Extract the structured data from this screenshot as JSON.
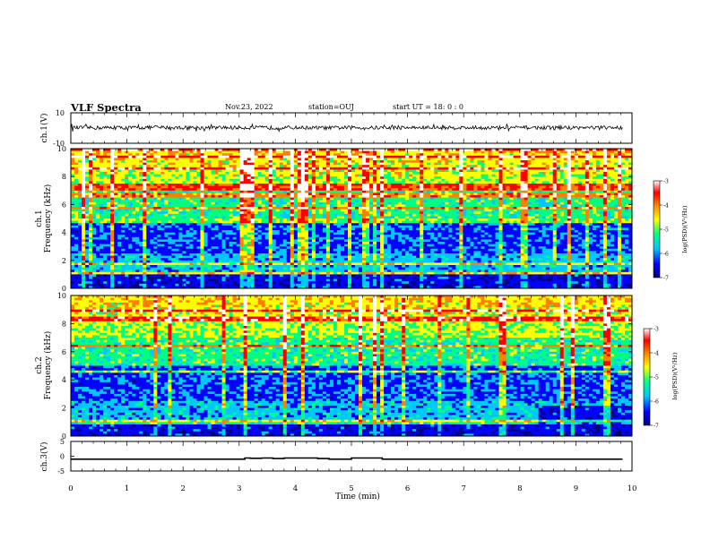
{
  "header": {
    "title": "VLF Spectra",
    "date": "Nov.23, 2022",
    "station": "station=OUJ",
    "start_ut": "start  UT =   18: 0  : 0"
  },
  "colors": {
    "spectrogram_colormap": [
      "#000080",
      "#0000ff",
      "#00c8ff",
      "#00ff80",
      "#ffff00",
      "#ff8000",
      "#ff0000",
      "#ffffff"
    ],
    "trace": "#000000"
  },
  "chart_data": [
    {
      "type": "line",
      "name": "ch1-waveform",
      "ylabel": "ch.1(V)",
      "ylim": [
        -10,
        10
      ],
      "yticks": [
        "10",
        "-10"
      ],
      "xlim": [
        0,
        10
      ],
      "x": [
        0,
        0.5,
        1,
        1.5,
        2,
        2.5,
        3,
        3.5,
        4,
        4.5,
        5,
        5.5,
        6,
        6.5,
        7,
        7.5,
        8,
        8.5,
        9,
        9.5,
        9.83
      ],
      "y": [
        0.3,
        0.2,
        0.2,
        0.4,
        0.3,
        0.2,
        0.3,
        0.2,
        0.3,
        0.1,
        0.3,
        0.2,
        0.3,
        0.2,
        0.3,
        0.2,
        0.3,
        0.2,
        0.3,
        0.2,
        0.3
      ],
      "amplitude_v": 1.2
    },
    {
      "type": "heatmap",
      "name": "ch1-spectrogram",
      "ylabel": "ch.1 Frequency (kHz)",
      "ylim": [
        0,
        10
      ],
      "yticks": [
        "0",
        "2",
        "4",
        "6",
        "8",
        "10"
      ],
      "xlim": [
        0,
        10
      ],
      "colorbar": {
        "label": "log(PSD)(V²/Hz)",
        "range": [
          -7,
          -3
        ],
        "ticks": [
          "-3",
          "-4",
          "-5",
          "-6",
          "-7"
        ]
      }
    },
    {
      "type": "heatmap",
      "name": "ch2-spectrogram",
      "ylabel": "ch.2 Frequency (kHz)",
      "ylim": [
        0,
        10
      ],
      "yticks": [
        "0",
        "2",
        "4",
        "6",
        "8",
        "10"
      ],
      "xlim": [
        0,
        10
      ],
      "colorbar": {
        "label": "log(PSD)(V²/Hz)",
        "range": [
          -7,
          -3
        ],
        "ticks": [
          "-3",
          "-4",
          "-5",
          "-6",
          "-7"
        ]
      }
    },
    {
      "type": "line",
      "name": "ch3-signal",
      "ylabel": "ch.3(V)",
      "ylim": [
        -5,
        5
      ],
      "yticks": [
        "5",
        "0",
        "-5"
      ],
      "xlim": [
        0,
        10
      ],
      "xlabel": "Time  (min)",
      "xticks": [
        "0",
        "1",
        "2",
        "3",
        "4",
        "5",
        "6",
        "7",
        "8",
        "9",
        "10"
      ],
      "x": [
        0,
        3.1,
        3.1,
        3.2,
        3.2,
        3.4,
        3.4,
        3.6,
        3.6,
        3.8,
        3.8,
        4.4,
        4.4,
        4.6,
        4.6,
        5.0,
        5.0,
        5.55,
        5.55,
        9.83
      ],
      "y": [
        -1.0,
        -1.0,
        -0.6,
        -0.6,
        -0.7,
        -0.7,
        -0.6,
        -0.6,
        -0.8,
        -0.8,
        -0.6,
        -0.6,
        -0.8,
        -0.8,
        -1.0,
        -1.0,
        -0.6,
        -0.6,
        -1.0,
        -1.0
      ]
    }
  ]
}
